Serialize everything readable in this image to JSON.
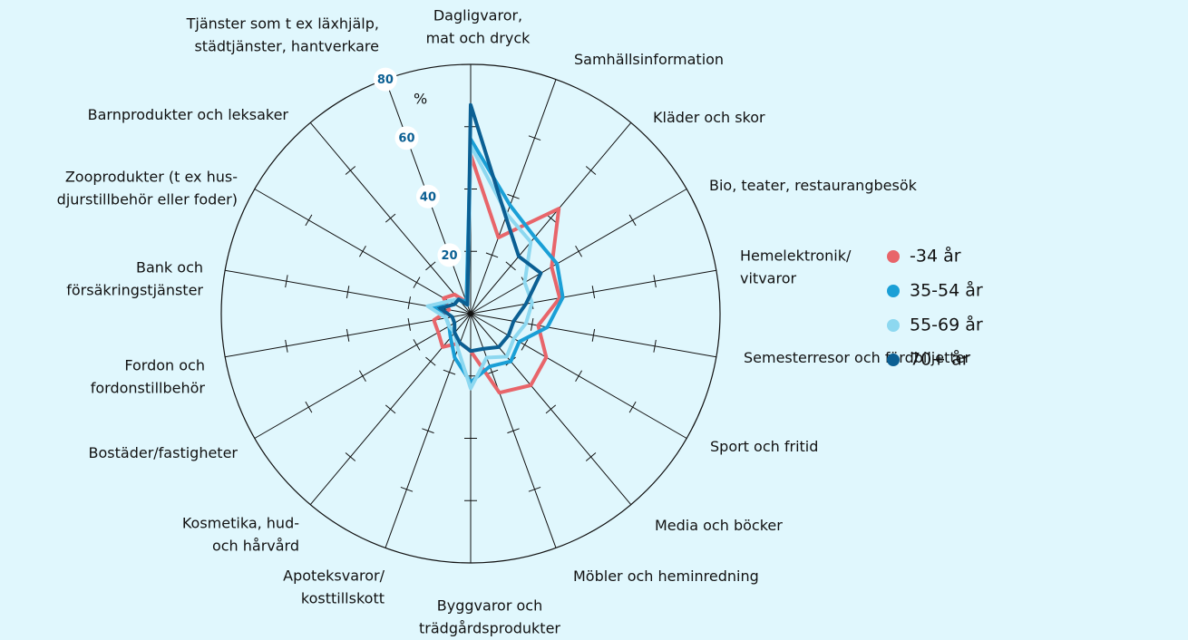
{
  "chart_data": {
    "type": "radar",
    "categories": [
      "Dagligvaror,\nmat och dryck",
      "Samhällsinformation",
      "Kläder och skor",
      "Bio, teater, restaurangbesök",
      "Hemelektronik/\nvitvaror",
      "Semesterresor och färdbiljetter",
      "Sport och fritid",
      "Media och böcker",
      "Möbler och heminredning",
      "Byggvaror och\nträdgårdsprodukter",
      "Apoteksvaror/\nkosttillskott",
      "Kosmetika, hud-\noch hårvård",
      "Bostäder/fastigheter",
      "Fordon och\nfordonstillbehör",
      "Bank och\nförsäkringstjänster",
      "Zooprodukter (t ex hus-\ndjurstillbehör eller foder)",
      "Barnprodukter och leksaker",
      "Tjänster som t ex läxhjälp,\nstädtjänster, hantverkare"
    ],
    "series": [
      {
        "name": "-34 år",
        "color": "#e8656a",
        "values": [
          51,
          26,
          44,
          30,
          29,
          22,
          28,
          30,
          27,
          12,
          10,
          14,
          12,
          12,
          7,
          10,
          8,
          4
        ]
      },
      {
        "name": "35-54 år",
        "color": "#1a9fd6",
        "values": [
          56,
          37,
          32,
          32,
          30,
          25,
          18,
          20,
          18,
          22,
          15,
          10,
          8,
          8,
          12,
          8,
          6,
          4
        ]
      },
      {
        "name": "55-69 år",
        "color": "#8dd8f0",
        "values": [
          54,
          34,
          30,
          20,
          20,
          18,
          16,
          18,
          15,
          24,
          12,
          8,
          8,
          8,
          14,
          8,
          6,
          3
        ]
      },
      {
        "name": "70+ år",
        "color": "#0b5f93",
        "values": [
          67,
          33,
          24,
          26,
          18,
          14,
          14,
          14,
          12,
          12,
          10,
          8,
          6,
          6,
          10,
          6,
          6,
          3
        ]
      }
    ],
    "unit": "%",
    "ylim": [
      0,
      80
    ],
    "yticks": [
      20,
      40,
      60,
      80
    ],
    "legend": "right"
  }
}
